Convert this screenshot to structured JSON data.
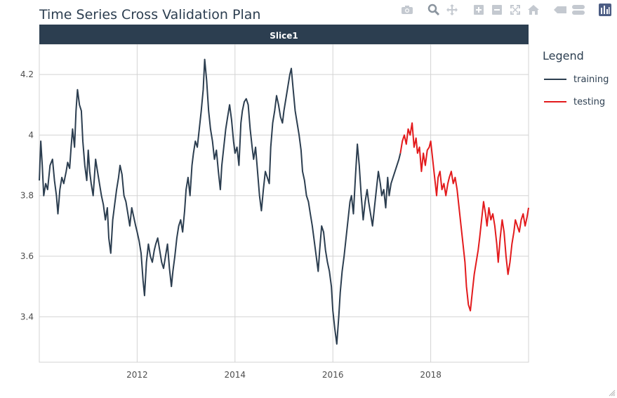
{
  "title": "Time Series Cross Validation Plan",
  "toolbar": {
    "items": [
      {
        "name": "camera-icon",
        "color": "#c4c9d0"
      },
      {
        "name": "zoom-icon",
        "color": "#8a949e"
      },
      {
        "name": "pan-icon",
        "color": "#c4c9d0"
      },
      {
        "name": "zoom-in-icon",
        "color": "#c4c9d0"
      },
      {
        "name": "zoom-out-icon",
        "color": "#c4c9d0"
      },
      {
        "name": "autoscale-icon",
        "color": "#c4c9d0"
      },
      {
        "name": "reset-axes-icon",
        "color": "#c4c9d0"
      },
      {
        "name": "spike-lines-icon",
        "color": "#c4c9d0"
      },
      {
        "name": "compare-hover-icon",
        "color": "#c4c9d0"
      },
      {
        "name": "plotly-logo-icon",
        "color": "#4c5d84"
      }
    ]
  },
  "legend": {
    "title": "Legend",
    "items": [
      {
        "label": "training",
        "color": "#2c3e50"
      },
      {
        "label": "testing",
        "color": "#e31a1c"
      }
    ]
  },
  "colors": {
    "strip_bg": "#2c3e50",
    "strip_text": "#ffffff",
    "grid": "#d3d3d3",
    "axis_text": "#4d4d4d"
  },
  "chart_data": {
    "type": "line",
    "facet_label": "Slice1",
    "xlabel": "",
    "ylabel": "",
    "x_range": [
      2010.0,
      2020.0
    ],
    "ylim": [
      3.25,
      4.3
    ],
    "x_ticks": [
      2012,
      2014,
      2016,
      2018
    ],
    "x_tick_labels": [
      "2012",
      "2014",
      "2016",
      "2018"
    ],
    "y_ticks": [
      3.4,
      3.6,
      3.8,
      4.0,
      4.2
    ],
    "y_tick_labels": [
      "3.4",
      "3.6",
      "3.8",
      "4",
      "4.2"
    ],
    "grid": true,
    "legend_position": "right",
    "series": [
      {
        "name": "training",
        "color": "#2c3e50",
        "points": [
          [
            2010.0,
            3.85
          ],
          [
            2010.03,
            3.98
          ],
          [
            2010.06,
            3.9
          ],
          [
            2010.09,
            3.8
          ],
          [
            2010.13,
            3.84
          ],
          [
            2010.17,
            3.82
          ],
          [
            2010.22,
            3.9
          ],
          [
            2010.27,
            3.92
          ],
          [
            2010.31,
            3.85
          ],
          [
            2010.35,
            3.8
          ],
          [
            2010.38,
            3.74
          ],
          [
            2010.42,
            3.82
          ],
          [
            2010.46,
            3.86
          ],
          [
            2010.5,
            3.84
          ],
          [
            2010.55,
            3.88
          ],
          [
            2010.58,
            3.91
          ],
          [
            2010.62,
            3.89
          ],
          [
            2010.65,
            3.96
          ],
          [
            2010.68,
            4.02
          ],
          [
            2010.72,
            3.96
          ],
          [
            2010.75,
            4.08
          ],
          [
            2010.78,
            4.15
          ],
          [
            2010.82,
            4.1
          ],
          [
            2010.86,
            4.08
          ],
          [
            2010.89,
            3.98
          ],
          [
            2010.93,
            3.9
          ],
          [
            2010.97,
            3.85
          ],
          [
            2011.0,
            3.95
          ],
          [
            2011.03,
            3.88
          ],
          [
            2011.06,
            3.84
          ],
          [
            2011.1,
            3.8
          ],
          [
            2011.15,
            3.92
          ],
          [
            2011.19,
            3.88
          ],
          [
            2011.23,
            3.84
          ],
          [
            2011.27,
            3.8
          ],
          [
            2011.31,
            3.77
          ],
          [
            2011.35,
            3.72
          ],
          [
            2011.39,
            3.76
          ],
          [
            2011.42,
            3.66
          ],
          [
            2011.46,
            3.61
          ],
          [
            2011.5,
            3.72
          ],
          [
            2011.54,
            3.77
          ],
          [
            2011.58,
            3.82
          ],
          [
            2011.62,
            3.86
          ],
          [
            2011.65,
            3.9
          ],
          [
            2011.69,
            3.87
          ],
          [
            2011.73,
            3.8
          ],
          [
            2011.77,
            3.78
          ],
          [
            2011.81,
            3.74
          ],
          [
            2011.85,
            3.7
          ],
          [
            2011.89,
            3.76
          ],
          [
            2011.93,
            3.73
          ],
          [
            2011.97,
            3.7
          ],
          [
            2012.0,
            3.68
          ],
          [
            2012.04,
            3.65
          ],
          [
            2012.08,
            3.61
          ],
          [
            2012.12,
            3.52
          ],
          [
            2012.15,
            3.47
          ],
          [
            2012.19,
            3.58
          ],
          [
            2012.23,
            3.64
          ],
          [
            2012.27,
            3.6
          ],
          [
            2012.31,
            3.58
          ],
          [
            2012.35,
            3.62
          ],
          [
            2012.38,
            3.64
          ],
          [
            2012.42,
            3.66
          ],
          [
            2012.46,
            3.62
          ],
          [
            2012.5,
            3.58
          ],
          [
            2012.54,
            3.56
          ],
          [
            2012.58,
            3.6
          ],
          [
            2012.62,
            3.64
          ],
          [
            2012.66,
            3.56
          ],
          [
            2012.7,
            3.5
          ],
          [
            2012.73,
            3.55
          ],
          [
            2012.77,
            3.6
          ],
          [
            2012.81,
            3.66
          ],
          [
            2012.85,
            3.7
          ],
          [
            2012.89,
            3.72
          ],
          [
            2012.93,
            3.68
          ],
          [
            2012.97,
            3.75
          ],
          [
            2013.0,
            3.82
          ],
          [
            2013.04,
            3.86
          ],
          [
            2013.08,
            3.8
          ],
          [
            2013.12,
            3.9
          ],
          [
            2013.15,
            3.94
          ],
          [
            2013.19,
            3.98
          ],
          [
            2013.23,
            3.96
          ],
          [
            2013.27,
            4.02
          ],
          [
            2013.31,
            4.08
          ],
          [
            2013.35,
            4.15
          ],
          [
            2013.38,
            4.25
          ],
          [
            2013.42,
            4.18
          ],
          [
            2013.46,
            4.08
          ],
          [
            2013.5,
            4.02
          ],
          [
            2013.54,
            3.98
          ],
          [
            2013.58,
            3.92
          ],
          [
            2013.62,
            3.95
          ],
          [
            2013.66,
            3.88
          ],
          [
            2013.7,
            3.82
          ],
          [
            2013.73,
            3.9
          ],
          [
            2013.77,
            3.96
          ],
          [
            2013.81,
            4.02
          ],
          [
            2013.85,
            4.06
          ],
          [
            2013.89,
            4.1
          ],
          [
            2013.93,
            4.05
          ],
          [
            2013.97,
            3.98
          ],
          [
            2014.0,
            3.94
          ],
          [
            2014.04,
            3.96
          ],
          [
            2014.08,
            3.9
          ],
          [
            2014.12,
            4.04
          ],
          [
            2014.15,
            4.08
          ],
          [
            2014.19,
            4.11
          ],
          [
            2014.23,
            4.12
          ],
          [
            2014.27,
            4.1
          ],
          [
            2014.31,
            4.02
          ],
          [
            2014.35,
            3.96
          ],
          [
            2014.38,
            3.92
          ],
          [
            2014.42,
            3.96
          ],
          [
            2014.46,
            3.88
          ],
          [
            2014.5,
            3.8
          ],
          [
            2014.54,
            3.75
          ],
          [
            2014.58,
            3.82
          ],
          [
            2014.62,
            3.88
          ],
          [
            2014.66,
            3.86
          ],
          [
            2014.7,
            3.84
          ],
          [
            2014.73,
            3.96
          ],
          [
            2014.77,
            4.04
          ],
          [
            2014.81,
            4.08
          ],
          [
            2014.85,
            4.13
          ],
          [
            2014.89,
            4.1
          ],
          [
            2014.93,
            4.06
          ],
          [
            2014.97,
            4.04
          ],
          [
            2015.0,
            4.08
          ],
          [
            2015.04,
            4.12
          ],
          [
            2015.08,
            4.16
          ],
          [
            2015.12,
            4.2
          ],
          [
            2015.15,
            4.22
          ],
          [
            2015.19,
            4.15
          ],
          [
            2015.23,
            4.08
          ],
          [
            2015.27,
            4.04
          ],
          [
            2015.31,
            4.0
          ],
          [
            2015.35,
            3.95
          ],
          [
            2015.38,
            3.88
          ],
          [
            2015.42,
            3.85
          ],
          [
            2015.46,
            3.8
          ],
          [
            2015.5,
            3.78
          ],
          [
            2015.54,
            3.74
          ],
          [
            2015.58,
            3.7
          ],
          [
            2015.62,
            3.65
          ],
          [
            2015.66,
            3.6
          ],
          [
            2015.7,
            3.55
          ],
          [
            2015.73,
            3.62
          ],
          [
            2015.77,
            3.7
          ],
          [
            2015.81,
            3.68
          ],
          [
            2015.85,
            3.62
          ],
          [
            2015.89,
            3.58
          ],
          [
            2015.93,
            3.55
          ],
          [
            2015.97,
            3.5
          ],
          [
            2016.0,
            3.42
          ],
          [
            2016.04,
            3.36
          ],
          [
            2016.08,
            3.31
          ],
          [
            2016.12,
            3.4
          ],
          [
            2016.15,
            3.48
          ],
          [
            2016.19,
            3.55
          ],
          [
            2016.23,
            3.6
          ],
          [
            2016.27,
            3.66
          ],
          [
            2016.31,
            3.72
          ],
          [
            2016.35,
            3.78
          ],
          [
            2016.38,
            3.8
          ],
          [
            2016.42,
            3.74
          ],
          [
            2016.46,
            3.86
          ],
          [
            2016.5,
            3.97
          ],
          [
            2016.54,
            3.9
          ],
          [
            2016.58,
            3.8
          ],
          [
            2016.62,
            3.72
          ],
          [
            2016.66,
            3.78
          ],
          [
            2016.7,
            3.82
          ],
          [
            2016.73,
            3.78
          ],
          [
            2016.77,
            3.74
          ],
          [
            2016.81,
            3.7
          ],
          [
            2016.85,
            3.76
          ],
          [
            2016.89,
            3.82
          ],
          [
            2016.93,
            3.88
          ],
          [
            2016.97,
            3.84
          ],
          [
            2017.0,
            3.8
          ],
          [
            2017.04,
            3.82
          ],
          [
            2017.08,
            3.76
          ],
          [
            2017.12,
            3.86
          ],
          [
            2017.15,
            3.8
          ],
          [
            2017.19,
            3.84
          ],
          [
            2017.23,
            3.86
          ],
          [
            2017.27,
            3.88
          ],
          [
            2017.31,
            3.9
          ],
          [
            2017.35,
            3.92
          ],
          [
            2017.38,
            3.94
          ]
        ]
      },
      {
        "name": "testing",
        "color": "#e31a1c",
        "points": [
          [
            2017.38,
            3.94
          ],
          [
            2017.42,
            3.98
          ],
          [
            2017.46,
            4.0
          ],
          [
            2017.5,
            3.97
          ],
          [
            2017.54,
            4.02
          ],
          [
            2017.58,
            4.0
          ],
          [
            2017.62,
            4.04
          ],
          [
            2017.66,
            3.96
          ],
          [
            2017.7,
            3.99
          ],
          [
            2017.73,
            3.94
          ],
          [
            2017.77,
            3.96
          ],
          [
            2017.81,
            3.88
          ],
          [
            2017.85,
            3.94
          ],
          [
            2017.89,
            3.9
          ],
          [
            2017.93,
            3.95
          ],
          [
            2017.97,
            3.96
          ],
          [
            2018.0,
            3.98
          ],
          [
            2018.04,
            3.92
          ],
          [
            2018.08,
            3.86
          ],
          [
            2018.12,
            3.8
          ],
          [
            2018.15,
            3.86
          ],
          [
            2018.19,
            3.88
          ],
          [
            2018.23,
            3.82
          ],
          [
            2018.27,
            3.84
          ],
          [
            2018.31,
            3.8
          ],
          [
            2018.35,
            3.84
          ],
          [
            2018.38,
            3.86
          ],
          [
            2018.42,
            3.88
          ],
          [
            2018.46,
            3.84
          ],
          [
            2018.5,
            3.86
          ],
          [
            2018.54,
            3.82
          ],
          [
            2018.58,
            3.76
          ],
          [
            2018.62,
            3.7
          ],
          [
            2018.66,
            3.64
          ],
          [
            2018.7,
            3.58
          ],
          [
            2018.73,
            3.5
          ],
          [
            2018.77,
            3.44
          ],
          [
            2018.81,
            3.42
          ],
          [
            2018.85,
            3.48
          ],
          [
            2018.89,
            3.54
          ],
          [
            2018.93,
            3.58
          ],
          [
            2018.97,
            3.62
          ],
          [
            2019.0,
            3.66
          ],
          [
            2019.04,
            3.72
          ],
          [
            2019.08,
            3.78
          ],
          [
            2019.12,
            3.74
          ],
          [
            2019.15,
            3.7
          ],
          [
            2019.19,
            3.76
          ],
          [
            2019.23,
            3.72
          ],
          [
            2019.27,
            3.74
          ],
          [
            2019.31,
            3.7
          ],
          [
            2019.35,
            3.64
          ],
          [
            2019.38,
            3.58
          ],
          [
            2019.42,
            3.66
          ],
          [
            2019.46,
            3.72
          ],
          [
            2019.5,
            3.68
          ],
          [
            2019.54,
            3.6
          ],
          [
            2019.58,
            3.54
          ],
          [
            2019.62,
            3.58
          ],
          [
            2019.66,
            3.64
          ],
          [
            2019.7,
            3.68
          ],
          [
            2019.73,
            3.72
          ],
          [
            2019.77,
            3.7
          ],
          [
            2019.81,
            3.68
          ],
          [
            2019.85,
            3.72
          ],
          [
            2019.89,
            3.74
          ],
          [
            2019.93,
            3.7
          ],
          [
            2019.97,
            3.73
          ],
          [
            2020.0,
            3.76
          ]
        ]
      }
    ]
  }
}
